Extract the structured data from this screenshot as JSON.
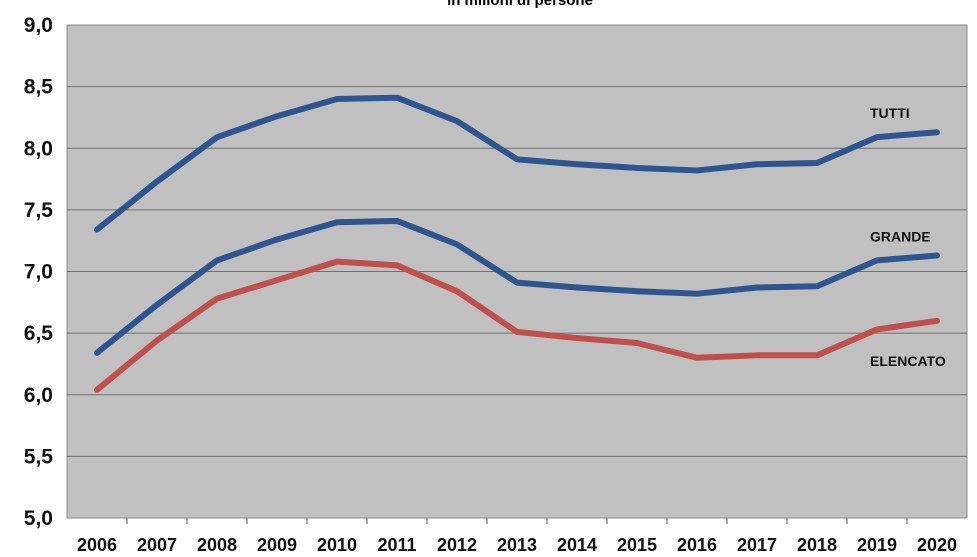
{
  "chart_data": {
    "type": "line",
    "title": "in milioni di persone",
    "xlabel": "",
    "ylabel": "",
    "x": [
      "2006",
      "2007",
      "2008",
      "2009",
      "2010",
      "2011",
      "2012",
      "2013",
      "2014",
      "2015",
      "2016",
      "2017",
      "2018",
      "2019",
      "2020"
    ],
    "ylim": [
      5.0,
      9.0
    ],
    "y_ticks": [
      "5,0",
      "5,5",
      "6,0",
      "6,5",
      "7,0",
      "7,5",
      "8,0",
      "8,5",
      "9,0"
    ],
    "grid": true,
    "background_color": "#c0c0c0",
    "series": [
      {
        "name": "TUTTI",
        "color": "#2e5590",
        "values": [
          7.34,
          7.73,
          8.09,
          8.26,
          8.4,
          8.41,
          8.22,
          7.91,
          7.87,
          7.84,
          7.82,
          7.87,
          7.88,
          8.09,
          8.13
        ]
      },
      {
        "name": "GRANDE",
        "color": "#2e5590",
        "values": [
          6.34,
          6.73,
          7.09,
          7.26,
          7.4,
          7.41,
          7.22,
          6.91,
          6.87,
          6.84,
          6.82,
          6.87,
          6.88,
          7.09,
          7.13
        ]
      },
      {
        "name": "ELENCATO",
        "color": "#c0504d",
        "values": [
          6.04,
          6.44,
          6.78,
          6.93,
          7.08,
          7.05,
          6.84,
          6.51,
          6.46,
          6.42,
          6.3,
          6.32,
          6.32,
          6.53,
          6.6
        ]
      }
    ]
  }
}
